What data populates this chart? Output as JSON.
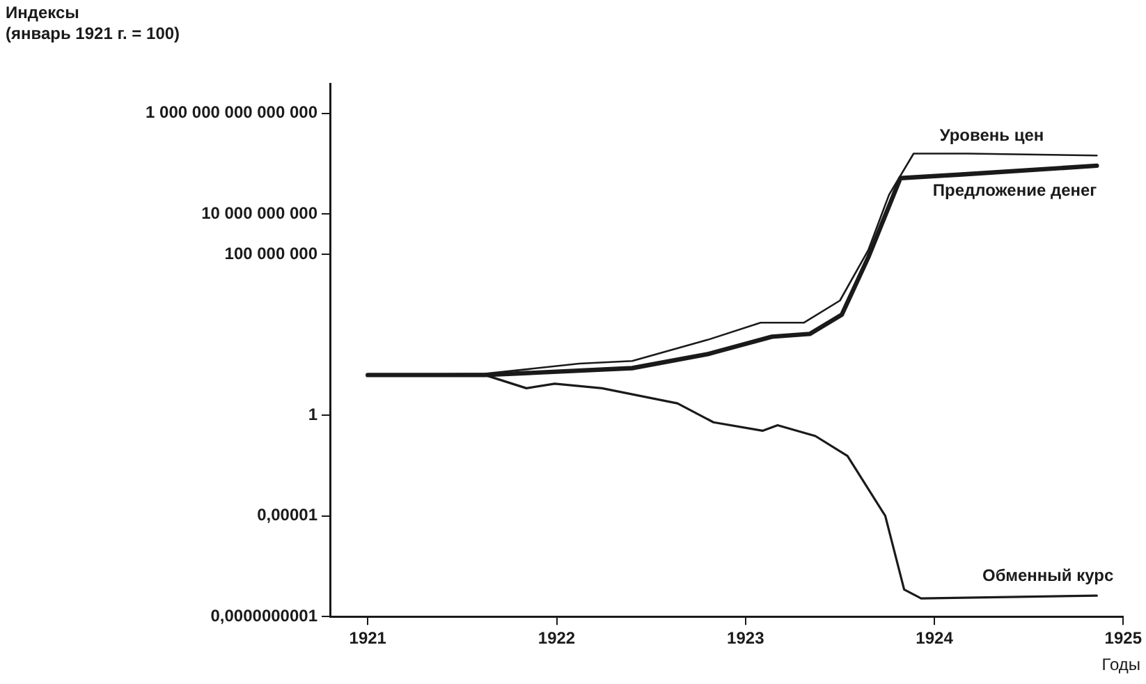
{
  "chart_data": {
    "type": "line",
    "ylabel": "Индексы\n(январь 1921 г. = 100)",
    "xlabel": "Годы",
    "log": "y",
    "grid": false,
    "legend": false,
    "marker": "none",
    "line_style": "solid",
    "xlim": [
      1920.8,
      1925
    ],
    "xticks": [
      1921,
      1922,
      1923,
      1924,
      1925
    ],
    "ylim": [
      1e-10,
      3e+16
    ],
    "yticks": [
      {
        "value": 1e-10,
        "label": "0,0000000001"
      },
      {
        "value": 1e-05,
        "label": "0,00001"
      },
      {
        "value": 1,
        "label": "1"
      },
      {
        "value": 100000000.0,
        "label": "100 000 000"
      },
      {
        "value": 10000000000.0,
        "label": "10 000 000 000"
      },
      {
        "value": 1000000000000000.0,
        "label": "1 000 000 000 000 000"
      }
    ],
    "series": [
      {
        "name": "Уровень цен",
        "color": "#1a1a1a",
        "x": [
          1921.0,
          1921.62,
          1922.12,
          1922.4,
          1922.8,
          1923.08,
          1923.31,
          1923.5,
          1923.65,
          1923.76,
          1923.89,
          1924.18,
          1924.86
        ],
        "values": [
          100,
          115,
          370,
          500,
          5600,
          40000,
          40000,
          500000,
          160000000,
          90000000000,
          10000000000000,
          10000000000000,
          8000000000000
        ]
      },
      {
        "name": "Предложение денег",
        "color": "#1a1a1a",
        "x": [
          1921.0,
          1921.62,
          1922.4,
          1922.8,
          1923.14,
          1923.34,
          1923.51,
          1923.65,
          1923.82,
          1924.13,
          1924.86
        ],
        "values": [
          100,
          100,
          220,
          1100,
          8000,
          11000,
          100000,
          70000000,
          600000000000,
          900000000000,
          2500000000000
        ]
      },
      {
        "name": "Обменный курс",
        "color": "#1a1a1a",
        "x": [
          1921.0,
          1921.62,
          1921.84,
          1921.99,
          1922.24,
          1922.64,
          1922.83,
          1923.09,
          1923.17,
          1923.37,
          1923.54,
          1923.74,
          1923.84,
          1923.93,
          1924.86
        ],
        "values": [
          100,
          100,
          22,
          37,
          22,
          3.9,
          0.45,
          0.17,
          0.32,
          0.093,
          0.0095,
          1e-05,
          2.2e-09,
          8e-10,
          1.1e-09
        ]
      }
    ]
  }
}
